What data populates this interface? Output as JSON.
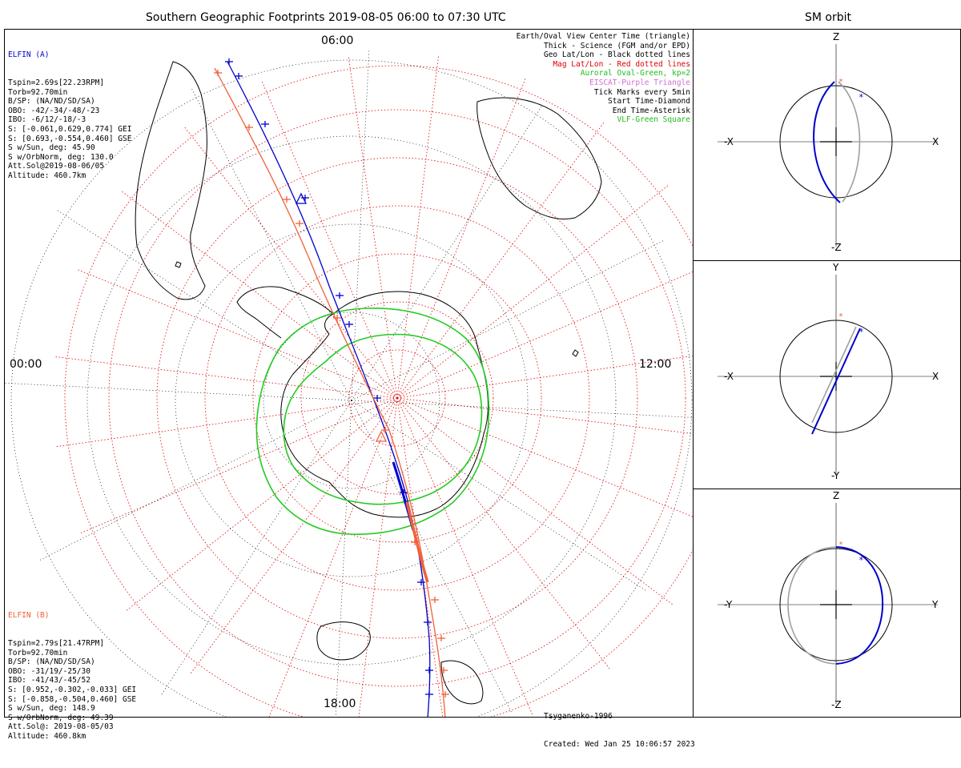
{
  "main_title": "Southern Geographic Footprints 2019-08-05 06:00 to 07:30 UTC",
  "sm_title": "SM orbit",
  "hour_labels": {
    "top": "06:00",
    "left": "00:00",
    "right": "12:00",
    "bottom": "18:00"
  },
  "elfin_a": {
    "name": "ELFIN (A)",
    "color": "#0000cc",
    "lines": [
      "Tspin=2.69s[22.23RPM]",
      "Torb=92.70min",
      "B/SP: (NA/ND/SD/SA)",
      "OBO: -42/-34/-48/-23",
      "IBO: -6/12/-18/-3",
      "S: [-0.061,0.629,0.774] GEI",
      "S: [0.693,-0.554,0.460] GSE",
      "S w/Sun, deg: 45.90",
      "S w/OrbNorm, deg: 130.0",
      "Att.Sol@2019-08-06/05",
      "Altitude: 460.7km"
    ]
  },
  "elfin_b": {
    "name": "ELFIN (B)",
    "color": "#f0603a",
    "lines": [
      "Tspin=2.79s[21.47RPM]",
      "Torb=92.70min",
      "B/SP: (NA/ND/SD/SA)",
      "OBO: -31/19/-25/30",
      "IBO: -41/43/-45/52",
      "S: [0.952,-0.302,-0.033] GEI",
      "S: [-0.858,-0.504,0.460] GSE",
      "S w/Sun, deg: 148.9",
      "S w/OrbNorm, deg: 49.39",
      "Att.Sol@: 2019-08-05/03",
      "Altitude: 460.8km"
    ]
  },
  "legend": [
    {
      "text": "Earth/Oval View Center Time (triangle)",
      "color": "#000000"
    },
    {
      "text": "Thick - Science (FGM and/or EPD)",
      "color": "#000000"
    },
    {
      "text": "Geo Lat/Lon - Black dotted lines",
      "color": "#000000"
    },
    {
      "text": "Mag Lat/Lon - Red dotted lines",
      "color": "#e00000"
    },
    {
      "text": "Auroral Oval-Green, kp=2",
      "color": "#22bb22"
    },
    {
      "text": "EISCAT-Purple Triangle",
      "color": "#d070d0"
    },
    {
      "text": "Tick Marks every 5min",
      "color": "#000000"
    },
    {
      "text": "Start Time-Diamond",
      "color": "#000000"
    },
    {
      "text": "End Time-Asterisk",
      "color": "#000000"
    },
    {
      "text": "VLF-Green Square",
      "color": "#22bb22"
    }
  ],
  "footer": {
    "model": "Tsyganenko-1996",
    "created": "Created: Wed Jan 25 10:06:57 2023"
  },
  "sm_panels": [
    {
      "top": "Z",
      "bottom": "-Z",
      "left": "-X",
      "right": "X"
    },
    {
      "top": "Y",
      "bottom": "-Y",
      "left": "-X",
      "right": "X"
    },
    {
      "top": "Z",
      "bottom": "-Z",
      "left": "-Y",
      "right": "Y"
    }
  ],
  "colors": {
    "auroral_oval": "#22cc22",
    "mag_grid": "#e00000",
    "track_a": "#0000cc",
    "track_b": "#f0603a",
    "orbit_shadow": "#a0a0a0"
  }
}
